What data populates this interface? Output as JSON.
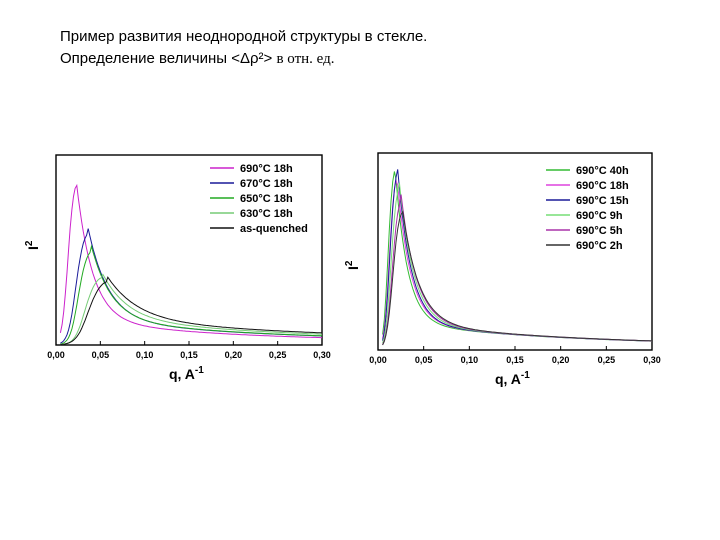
{
  "slide": {
    "title_line1": "Пример развития неоднородной структуры в стекле.",
    "title_line2_prefix": "Определение величины <Δρ²>",
    "title_line2_suffix": "в отн. ед."
  },
  "chart_data": [
    {
      "type": "line",
      "xlabel": "q, A",
      "xlabel_sup": "-1",
      "ylabel": "I",
      "ylabel_sup": "2",
      "xlim": [
        0,
        0.3
      ],
      "ylim": [
        0,
        1.0
      ],
      "xticks": [
        "0,00",
        "0,05",
        "0,10",
        "0,15",
        "0,20",
        "0,25",
        "0,30"
      ],
      "legend_position": "top-right",
      "series": [
        {
          "name": "690°C 18h",
          "color": "#cc22cc",
          "peak_x": 0.022,
          "peak_y": 0.88,
          "width": 0.016,
          "tail": 0.09,
          "tail_decay": 0.05
        },
        {
          "name": "670°C 18h",
          "color": "#1a1a99",
          "peak_x": 0.036,
          "peak_y": 0.6,
          "width": 0.02,
          "tail": 0.08,
          "tail_decay": 0.06
        },
        {
          "name": "650°C 18h",
          "color": "#22aa22",
          "peak_x": 0.04,
          "peak_y": 0.5,
          "width": 0.02,
          "tail": 0.08,
          "tail_decay": 0.06
        },
        {
          "name": "630°C 18h",
          "color": "#77cc77",
          "peak_x": 0.052,
          "peak_y": 0.36,
          "width": 0.025,
          "tail": 0.08,
          "tail_decay": 0.07
        },
        {
          "name": "as-quenched",
          "color": "#111111",
          "peak_x": 0.058,
          "peak_y": 0.34,
          "width": 0.03,
          "tail": 0.08,
          "tail_decay": 0.08
        }
      ]
    },
    {
      "type": "line",
      "xlabel": "q, A",
      "xlabel_sup": "-1",
      "ylabel": "I",
      "ylabel_sup": "2",
      "xlim": [
        0,
        0.3
      ],
      "ylim": [
        0,
        1.0
      ],
      "xticks": [
        "0,00",
        "0,05",
        "0,10",
        "0,15",
        "0,20",
        "0,25",
        "0,30"
      ],
      "legend_position": "top-right",
      "series": [
        {
          "name": "690°C 40h",
          "color": "#33bb33",
          "peak_x": 0.018,
          "peak_y": 0.95,
          "width": 0.012,
          "tail": 0.07,
          "tail_decay": 0.06
        },
        {
          "name": "690°C 18h",
          "color": "#dd44dd",
          "peak_x": 0.02,
          "peak_y": 0.9,
          "width": 0.013,
          "tail": 0.07,
          "tail_decay": 0.06
        },
        {
          "name": "690°C 15h",
          "color": "#1a1a99",
          "peak_x": 0.021,
          "peak_y": 0.93,
          "width": 0.013,
          "tail": 0.07,
          "tail_decay": 0.06
        },
        {
          "name": "690°C 9h",
          "color": "#77dd77",
          "peak_x": 0.023,
          "peak_y": 0.85,
          "width": 0.014,
          "tail": 0.07,
          "tail_decay": 0.06
        },
        {
          "name": "690°C 5h",
          "color": "#aa33aa",
          "peak_x": 0.025,
          "peak_y": 0.78,
          "width": 0.015,
          "tail": 0.07,
          "tail_decay": 0.06
        },
        {
          "name": "690°C 2h",
          "color": "#333333",
          "peak_x": 0.026,
          "peak_y": 0.72,
          "width": 0.016,
          "tail": 0.07,
          "tail_decay": 0.06
        }
      ]
    }
  ]
}
